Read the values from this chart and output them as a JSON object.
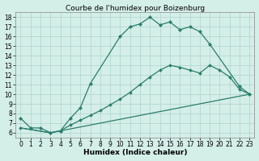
{
  "line1_x": [
    0,
    1,
    2,
    3,
    4,
    5,
    6,
    7,
    10,
    11,
    12,
    13,
    14,
    15,
    16,
    17,
    18,
    19,
    22,
    23
  ],
  "line1_y": [
    7.5,
    6.5,
    6.5,
    6.0,
    6.2,
    7.5,
    8.6,
    11.1,
    16.0,
    17.0,
    17.3,
    18.0,
    17.2,
    17.5,
    16.7,
    17.0,
    16.5,
    15.2,
    10.8,
    10.0
  ],
  "line2_x": [
    0,
    3,
    4,
    5,
    6,
    7,
    8,
    9,
    10,
    11,
    12,
    13,
    14,
    15,
    16,
    17,
    18,
    19,
    20,
    21,
    22,
    23
  ],
  "line2_y": [
    6.5,
    6.0,
    6.2,
    6.8,
    7.3,
    7.8,
    8.3,
    8.9,
    9.5,
    10.2,
    11.0,
    11.8,
    12.5,
    13.0,
    12.8,
    12.5,
    12.2,
    13.0,
    12.5,
    11.8,
    10.5,
    10.0
  ],
  "line3_x": [
    0,
    3,
    23
  ],
  "line3_y": [
    6.5,
    6.0,
    10.0
  ],
  "line_color": "#2a7d6b",
  "bg_color": "#d4eee8",
  "grid_color": "#aed4cc",
  "title": "Courbe de l'humidex pour Boizenburg",
  "xlabel": "Humidex (Indice chaleur)",
  "xlim": [
    -0.5,
    23.5
  ],
  "ylim": [
    5.5,
    18.5
  ],
  "xticks": [
    0,
    1,
    2,
    3,
    4,
    5,
    6,
    7,
    8,
    9,
    10,
    11,
    12,
    13,
    14,
    15,
    16,
    17,
    18,
    19,
    20,
    21,
    22,
    23
  ],
  "yticks": [
    6,
    7,
    8,
    9,
    10,
    11,
    12,
    13,
    14,
    15,
    16,
    17,
    18
  ],
  "title_fontsize": 6.5,
  "label_fontsize": 6.5,
  "tick_fontsize": 5.5
}
